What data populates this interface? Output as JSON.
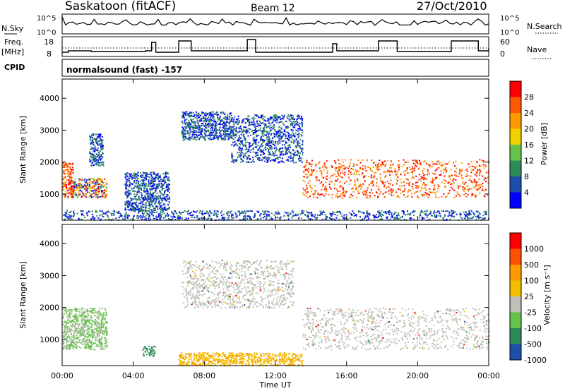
{
  "header": {
    "station": "Saskatoon (fitACF)",
    "beam": "Beam 12",
    "date": "27/Oct/2010"
  },
  "strip_labels": {
    "nsky": "N.Sky",
    "nsearch": "N.Search",
    "freq_line1": "Freq.",
    "freq_line2": "[MHz]",
    "nave": "Nave",
    "cpid": "CPID",
    "cpid_value": "normalsound (fast) -157"
  },
  "noise_ticks": {
    "high": "10^5",
    "low": "10^0"
  },
  "freq_ticks": {
    "top": "18",
    "bottom": "8"
  },
  "nave_ticks": {
    "top": "60",
    "bottom": "0"
  },
  "x_axis": {
    "label": "Time UT",
    "ticks": [
      "00:00",
      "04:00",
      "08:00",
      "12:00",
      "16:00",
      "20:00",
      "00:00"
    ]
  },
  "power_panel": {
    "ylabel": "Slant Range [km]",
    "yticks": [
      "4000",
      "3000",
      "2000",
      "1000"
    ],
    "colorbar_label": "Power [dB]",
    "colorbar_ticks": [
      "28",
      "24",
      "20",
      "16",
      "12",
      "8",
      "4"
    ],
    "colors": [
      "#0000ff",
      "#1d4fa8",
      "#2e8b57",
      "#66c24a",
      "#f0d000",
      "#ff9a00",
      "#ff5a00",
      "#ff0000"
    ]
  },
  "velocity_panel": {
    "ylabel": "Slant Range [km]",
    "yticks": [
      "4000",
      "3000",
      "2000",
      "1000"
    ],
    "colorbar_label": "Velocity [m s⁻¹]",
    "colorbar_ticks": [
      "1000",
      "500",
      "100",
      "25",
      "-25",
      "-100",
      "-500",
      "-1000"
    ],
    "colors": [
      "#1d4fa8",
      "#2e8b57",
      "#66c24a",
      "#c0c0b8",
      "#f0c000",
      "#ff9a00",
      "#ff5000",
      "#ff0000"
    ]
  },
  "chart_data": [
    {
      "type": "heatmap",
      "title": "Power",
      "xlabel": "Time UT",
      "ylabel": "Slant Range [km]",
      "xlim_hours": [
        0,
        24
      ],
      "ylim": [
        180,
        4600
      ],
      "colorbar": {
        "label": "Power [dB]",
        "range": [
          0,
          30
        ]
      },
      "regions": [
        {
          "t0": 0.0,
          "t1": 0.6,
          "r0": 900,
          "r1": 2000,
          "level": "red"
        },
        {
          "t0": 0.5,
          "t1": 2.5,
          "r0": 900,
          "r1": 1500,
          "level": "mixed"
        },
        {
          "t0": 1.5,
          "t1": 2.3,
          "r0": 1900,
          "r1": 2900,
          "level": "blue"
        },
        {
          "t0": 3.5,
          "t1": 6.0,
          "r0": 500,
          "r1": 1700,
          "level": "blue"
        },
        {
          "t0": 6.7,
          "t1": 9.5,
          "r0": 2700,
          "r1": 3600,
          "level": "blue"
        },
        {
          "t0": 9.5,
          "t1": 13.5,
          "r0": 2000,
          "r1": 3500,
          "level": "blue"
        },
        {
          "t0": 13.5,
          "t1": 24.0,
          "r0": 900,
          "r1": 2100,
          "level": "red"
        },
        {
          "t0": 0.0,
          "t1": 24.0,
          "r0": 200,
          "r1": 500,
          "level": "blue"
        }
      ]
    },
    {
      "type": "heatmap",
      "title": "Velocity",
      "xlabel": "Time UT",
      "ylabel": "Slant Range [km]",
      "xlim_hours": [
        0,
        24
      ],
      "ylim": [
        180,
        4600
      ],
      "colorbar": {
        "label": "Velocity [m s-1]",
        "range": [
          -1000,
          1000
        ]
      },
      "regions": [
        {
          "t0": 0.0,
          "t1": 2.5,
          "r0": 700,
          "r1": 2000,
          "level": "green"
        },
        {
          "t0": 4.5,
          "t1": 5.2,
          "r0": 500,
          "r1": 800,
          "level": "dark-green"
        },
        {
          "t0": 6.5,
          "t1": 13.5,
          "r0": 200,
          "r1": 600,
          "level": "orange"
        },
        {
          "t0": 13.5,
          "t1": 24.0,
          "r0": 700,
          "r1": 2000,
          "level": "grey"
        },
        {
          "t0": 6.7,
          "t1": 13.0,
          "r0": 2000,
          "r1": 3500,
          "level": "grey"
        }
      ]
    }
  ]
}
